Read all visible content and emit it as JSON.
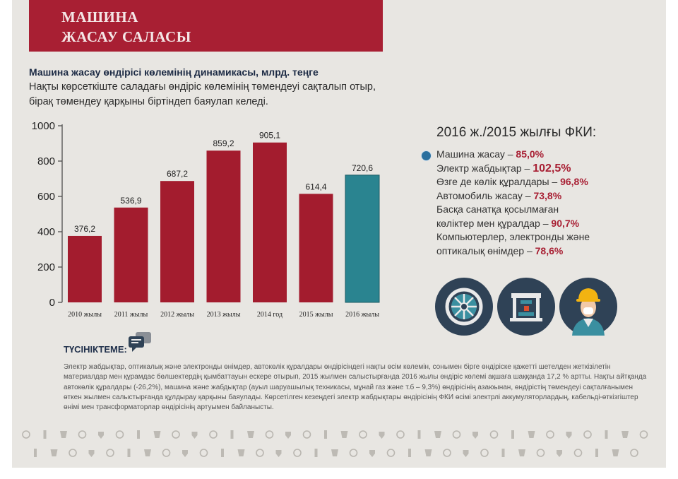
{
  "banner": {
    "line1": "МАШИНА",
    "line2": "ЖАСАУ САЛАСЫ"
  },
  "chart_section": {
    "title": "Машина жасау өндірісі көлемінің динамикасы, млрд. теңге",
    "intro": "Нақты көрсеткіште саладағы өндіріс көлемінің төмендеуі сақталып отыр, бірақ төмендеу қарқыны біртіндеп баяулап келеді."
  },
  "chart_data": {
    "type": "bar",
    "categories": [
      "2010 жылы",
      "2011 жылы",
      "2012 жылы",
      "2013 жылы",
      "2014 год",
      "2015 жылы",
      "2016 жылы"
    ],
    "values": [
      376.2,
      536.9,
      687.2,
      859.2,
      905.1,
      614.4,
      720.6
    ],
    "value_labels": [
      "376,2",
      "536,9",
      "687,2",
      "859,2",
      "905,1",
      "614,4",
      "720,6"
    ],
    "highlight_index": 6,
    "ylim": [
      0,
      1000
    ],
    "yticks": [
      0,
      200,
      400,
      600,
      800,
      1000
    ],
    "bar_color": "#a31c2e",
    "highlight_color": "#2a8490",
    "highlight_label_color": "#a31c2e",
    "grid": false
  },
  "fki": {
    "title": "2016 ж./2015 жылғы ФКИ:",
    "items": [
      {
        "label": "Машина жасау – ",
        "value": "85,0%"
      },
      {
        "label": "Электр жабдықтар – ",
        "value": "102,5%"
      },
      {
        "label": "Өзге де көлік құралдары – ",
        "value": "96,8%"
      },
      {
        "label": "Автомобиль жасау – ",
        "value": "73,8%"
      },
      {
        "label": "Басқа санатқа қосылмаған көліктер мен құралдар – ",
        "value": "90,7%"
      },
      {
        "label": "Компьютерлер, электронды және оптикалық өнімдер – ",
        "value": "78,6%"
      }
    ]
  },
  "icons": [
    "turbine-icon",
    "machine-press-icon",
    "worker-helmet-icon"
  ],
  "note": {
    "heading": "ТҮСІНІКТЕМЕ:",
    "text": "Электр жабдықтар, оптикалық және электронды өнімдер, автокөлік құралдары өндірісіндегі нақты өсім көлемін, сонымен бірге өндіріске қажетті шетелден жеткізілетін материалдар мен құрамдас бөлшектердің қымбаттауын ескере отырып, 2015 жылмен салыстырғанда 2016 жылы өндіріс көлемі ақшаға шаққанда 17,2 % артты. Нақты айтқанда автокөлік құралдары (-26,2%), машина және жабдықтар (ауыл шаруашылық техникасы, мұнай газ және т.б – 9,3%) өндірісінің азаюынан, өндірістің төмендеуі сақталғанымен өткен жылмен салыстырғанда құлдырау қарқыны баяулады. Көрсетілген кезеңдегі электр жабдықтары өндірісінің ФКИ өсімі электрлі аккумуляторлардың, кабельді-өткізгіштер өнімі мен трансформаторлар өндірісінің артуымен байланысты."
  }
}
